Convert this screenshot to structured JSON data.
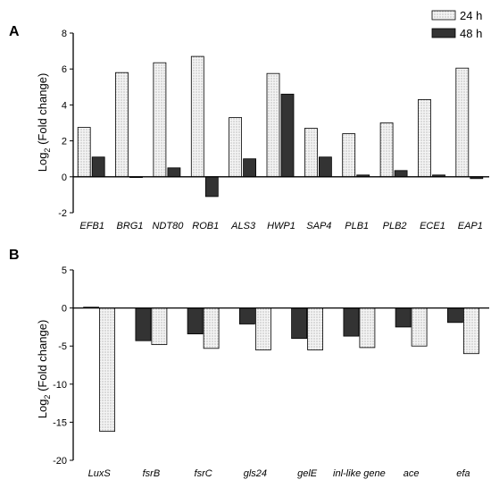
{
  "legend": [
    {
      "label": "24 h",
      "pattern": "dotted",
      "color": "#f4f4f4"
    },
    {
      "label": "48 h",
      "pattern": "solid",
      "color": "#333333"
    }
  ],
  "chart_data": [
    {
      "panel": "A",
      "type": "bar",
      "ylabel": "Log2 (Fold change)",
      "ylim": [
        -2,
        8
      ],
      "yticks": [
        -2,
        0,
        2,
        4,
        6,
        8
      ],
      "categories": [
        "EFB1",
        "BRG1",
        "NDT80",
        "ROB1",
        "ALS3",
        "HWP1",
        "SAP4",
        "PLB1",
        "PLB2",
        "ECE1",
        "EAP1"
      ],
      "series": [
        {
          "name": "24 h",
          "values": [
            2.75,
            5.8,
            6.35,
            6.7,
            3.3,
            5.75,
            2.7,
            2.4,
            3.0,
            4.3,
            6.05
          ]
        },
        {
          "name": "48 h",
          "values": [
            1.1,
            0.0,
            0.5,
            -1.1,
            1.0,
            4.6,
            1.1,
            0.1,
            0.35,
            0.1,
            -0.1
          ]
        }
      ],
      "legend_position": "top-right",
      "grid": false
    },
    {
      "panel": "B",
      "type": "bar",
      "ylabel": "Log2 (Fold change)",
      "ylim": [
        -20,
        5
      ],
      "yticks": [
        -20,
        -15,
        -10,
        -5,
        0,
        5
      ],
      "categories": [
        "LuxS",
        "fsrB",
        "fsrC",
        "gls24",
        "gelE",
        "inl-like gene",
        "ace",
        "efa"
      ],
      "series": [
        {
          "name": "48 h",
          "values": [
            0.1,
            -4.3,
            -3.4,
            -2.1,
            -4.0,
            -3.7,
            -2.5,
            -1.9
          ]
        },
        {
          "name": "24 h",
          "values": [
            -16.2,
            -4.8,
            -5.3,
            -5.5,
            -5.5,
            -5.2,
            -5.0,
            -6.0
          ]
        }
      ],
      "grid": false
    }
  ]
}
